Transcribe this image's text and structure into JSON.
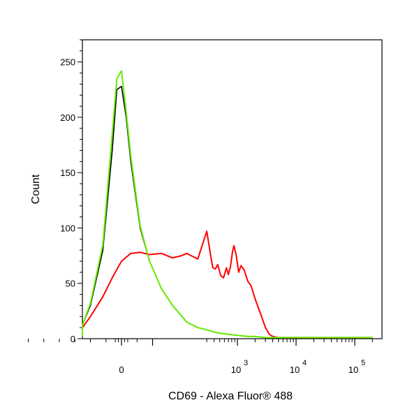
{
  "chart_data": {
    "type": "line",
    "title": "",
    "xlabel": "CD69 - Alexa Fluor® 488",
    "ylabel": "Count",
    "x_scale": "biexponential",
    "xlim": [
      -300,
      200000
    ],
    "ylim": [
      0,
      270
    ],
    "grid": false,
    "legend": "none",
    "x_tick_labels": [
      {
        "value": 0,
        "base": "0",
        "exp": ""
      },
      {
        "value": 1000,
        "base": "10",
        "exp": "3"
      },
      {
        "value": 10000,
        "base": "10",
        "exp": "4"
      },
      {
        "value": 100000,
        "base": "10",
        "exp": "5"
      }
    ],
    "y_ticks": [
      0,
      50,
      100,
      150,
      200,
      250
    ],
    "series": [
      {
        "color": "#ff0000",
        "x": [
          -300,
          -200,
          -150,
          -100,
          -60,
          -30,
          0,
          30,
          60,
          90,
          120,
          150,
          180,
          200,
          250,
          300,
          350,
          380,
          420,
          460,
          520,
          580,
          650,
          700,
          760,
          820,
          870,
          950,
          1050,
          1150,
          1300,
          1500,
          1700,
          2000,
          2500,
          3000,
          3500,
          4000,
          5000,
          7000,
          10000,
          20000,
          50000,
          200000
        ],
        "y": [
          2,
          6,
          10,
          20,
          38,
          55,
          70,
          77,
          78,
          76,
          77,
          73,
          75,
          77,
          72,
          97,
          75,
          64,
          63,
          67,
          57,
          55,
          64,
          58,
          65,
          78,
          84,
          76,
          60,
          66,
          62,
          52,
          48,
          36,
          22,
          10,
          4,
          2,
          1,
          1,
          1,
          1,
          1,
          1
        ]
      },
      {
        "color": "#000000",
        "x": [
          -300,
          -200,
          -150,
          -100,
          -60,
          -30,
          -15,
          0,
          15,
          30,
          60,
          90,
          120,
          150,
          200,
          250,
          300,
          400,
          500,
          700,
          1000,
          1500,
          2000,
          3000,
          5000,
          10000,
          200000
        ],
        "y": [
          2,
          5,
          12,
          30,
          80,
          170,
          225,
          228,
          200,
          160,
          100,
          70,
          45,
          30,
          15,
          10,
          8,
          6,
          5,
          4,
          3,
          2,
          2,
          1,
          1,
          1,
          1
        ]
      },
      {
        "color": "#66ee00",
        "x": [
          -300,
          -200,
          -150,
          -100,
          -60,
          -30,
          -15,
          0,
          15,
          30,
          60,
          90,
          120,
          150,
          200,
          250,
          300,
          400,
          500,
          700,
          1000,
          1500,
          2000,
          3000,
          5000,
          10000,
          200000
        ],
        "y": [
          2,
          5,
          12,
          32,
          85,
          185,
          235,
          242,
          205,
          165,
          102,
          70,
          45,
          30,
          15,
          10,
          8,
          6,
          5,
          4,
          3,
          2,
          2,
          1,
          1,
          1,
          1
        ]
      }
    ]
  }
}
